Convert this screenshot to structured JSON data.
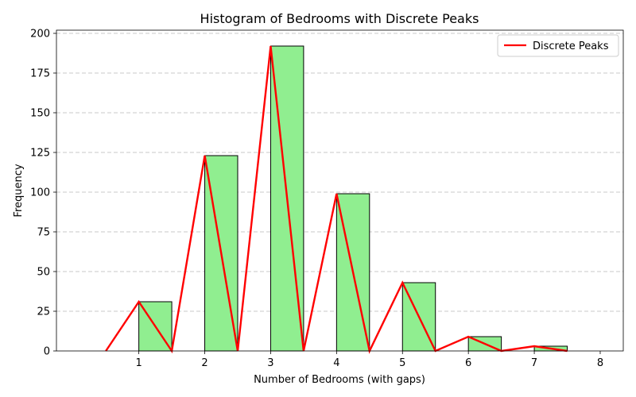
{
  "chart_data": {
    "type": "bar",
    "title": "Histogram of Bedrooms with Discrete Peaks",
    "xlabel": "Number of Bedrooms (with gaps)",
    "ylabel": "Frequency",
    "xlim": [
      -0.25,
      8.35
    ],
    "ylim": [
      0,
      202
    ],
    "xticks": [
      1,
      2,
      3,
      4,
      5,
      6,
      7,
      8
    ],
    "yticks": [
      0,
      25,
      50,
      75,
      100,
      125,
      150,
      175,
      200
    ],
    "grid": "y-dashed",
    "legend_position": "top-right",
    "bar_color": "#90EE90",
    "bar_edge_color": "#000000",
    "line_color": "#FF0000",
    "bars": [
      {
        "x_start": 1,
        "x_end": 1.5,
        "value": 31
      },
      {
        "x_start": 2,
        "x_end": 2.5,
        "value": 123
      },
      {
        "x_start": 3,
        "x_end": 3.5,
        "value": 192
      },
      {
        "x_start": 4,
        "x_end": 4.5,
        "value": 99
      },
      {
        "x_start": 5,
        "x_end": 5.5,
        "value": 43
      },
      {
        "x_start": 6,
        "x_end": 6.5,
        "value": 9
      },
      {
        "x_start": 7,
        "x_end": 7.5,
        "value": 3
      },
      {
        "x_start": 8,
        "x_end": 8.5,
        "value": 0
      }
    ],
    "series": [
      {
        "name": "Discrete Peaks",
        "x": [
          0.5,
          1,
          1.5,
          2,
          2.5,
          3,
          3.5,
          4,
          4.5,
          5,
          5.5,
          6,
          6.5,
          7,
          7.5
        ],
        "y": [
          0,
          31,
          0,
          123,
          0,
          192,
          0,
          99,
          0,
          43,
          0,
          9,
          0,
          3,
          0
        ]
      }
    ]
  }
}
